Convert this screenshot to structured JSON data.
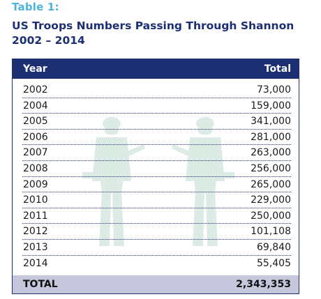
{
  "table_label": "Table 1:",
  "title_line1": "US Troops Numbers Passing Through Shannon",
  "title_line2": "2002 – 2014",
  "columns": {
    "year": "Year",
    "total": "Total"
  },
  "rows": [
    {
      "year": "2002",
      "total": "73,000"
    },
    {
      "year": "2004",
      "total": "159,000"
    },
    {
      "year": "2005",
      "total": "341,000"
    },
    {
      "year": "2006",
      "total": "281,000"
    },
    {
      "year": "2007",
      "total": "263,000"
    },
    {
      "year": "2008",
      "total": "256,000"
    },
    {
      "year": "2009",
      "total": "265,000"
    },
    {
      "year": "2010",
      "total": "229,000"
    },
    {
      "year": "2011",
      "total": "250,000"
    },
    {
      "year": "2012",
      "total": "101,108"
    },
    {
      "year": "2013",
      "total": "69,840"
    },
    {
      "year": "2014",
      "total": "55,405"
    }
  ],
  "total": {
    "label": "TOTAL",
    "value": "2,343,353"
  },
  "colors": {
    "header": "#1d2f73",
    "label": "#4fb3dd",
    "total_row": "#c6c7dc",
    "watermark": "#dcebe4"
  },
  "watermark_icon": "soldier-silhouette-icon"
}
